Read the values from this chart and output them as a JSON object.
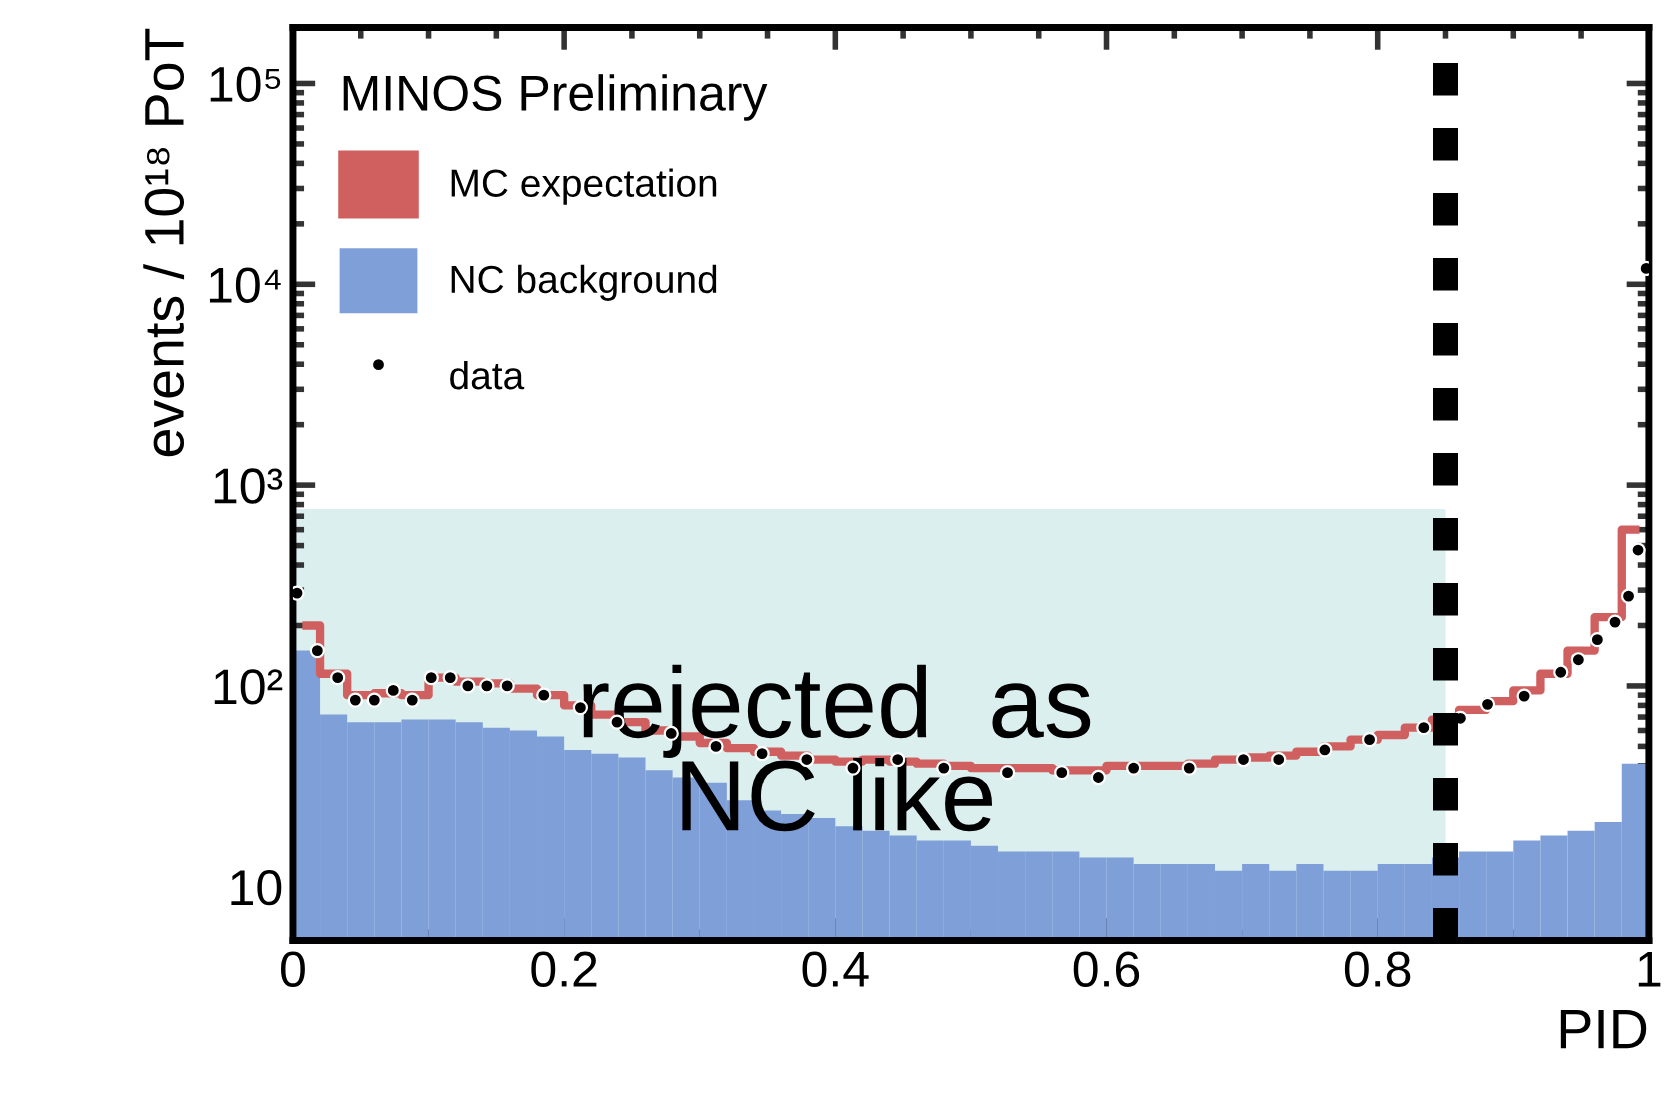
{
  "chart_data": {
    "type": "histogram",
    "xlabel": "PID",
    "ylabel": "events / 10¹⁸ PoT",
    "legend_title": "MINOS Preliminary",
    "bins": [
      0,
      0.02,
      0.04,
      0.06,
      0.08,
      0.1,
      0.12,
      0.14,
      0.16,
      0.18,
      0.2,
      0.22,
      0.24,
      0.26,
      0.28,
      0.3,
      0.32,
      0.34,
      0.36,
      0.38,
      0.4,
      0.42,
      0.44,
      0.46,
      0.48,
      0.5,
      0.52,
      0.54,
      0.56,
      0.58,
      0.6,
      0.62,
      0.64,
      0.66,
      0.68,
      0.7,
      0.72,
      0.74,
      0.76,
      0.78,
      0.8,
      0.82,
      0.84,
      0.86,
      0.88,
      0.9,
      0.92,
      0.94,
      0.96,
      0.98,
      1
    ],
    "series": [
      {
        "type": "area",
        "color": "#dcefef",
        "x": [
          0,
          0.85
        ],
        "values": [
          760,
          760
        ]
      },
      {
        "type": "step",
        "name": "MC expectation",
        "color": "#d06060",
        "x": [
          0.01,
          0.03,
          0.05,
          0.07,
          0.09,
          0.11,
          0.13,
          0.15,
          0.17,
          0.19,
          0.21,
          0.23,
          0.25,
          0.27,
          0.29,
          0.31,
          0.33,
          0.35,
          0.37,
          0.39,
          0.41,
          0.43,
          0.45,
          0.47,
          0.49,
          0.51,
          0.53,
          0.55,
          0.57,
          0.59,
          0.61,
          0.63,
          0.65,
          0.67,
          0.69,
          0.71,
          0.73,
          0.75,
          0.77,
          0.79,
          0.81,
          0.83,
          0.85,
          0.87,
          0.89,
          0.91,
          0.93,
          0.95,
          0.97,
          0.99
        ],
        "values": [
          200,
          115,
          90,
          92,
          90,
          110,
          105,
          103,
          97,
          90,
          80,
          72,
          66,
          60,
          56,
          52,
          49,
          47,
          45,
          43,
          42,
          43,
          42,
          41,
          40,
          39,
          39,
          39,
          38,
          38,
          40,
          40,
          40,
          41,
          43,
          44,
          45,
          47,
          50,
          54,
          57,
          62,
          68,
          76,
          84,
          95,
          115,
          150,
          220,
          600
        ]
      },
      {
        "name": "NC background",
        "color": "#7f9fd8",
        "values": [
          150,
          72,
          66,
          66,
          68,
          68,
          66,
          62,
          60,
          56,
          48,
          46,
          44,
          38,
          35,
          33,
          27,
          24,
          23,
          22,
          20,
          19,
          18,
          17,
          17,
          16,
          15,
          15,
          15,
          14,
          14,
          13,
          13,
          13,
          12,
          13,
          12,
          13,
          12,
          12,
          13,
          13,
          14,
          15,
          15,
          17,
          18,
          19,
          21,
          41
        ]
      },
      {
        "type": "scatter",
        "name": "data",
        "color": "#000000",
        "marker": "circle",
        "x": [
          0.003,
          0.018,
          0.033,
          0.046,
          0.06,
          0.074,
          0.088,
          0.102,
          0.116,
          0.129,
          0.143,
          0.158,
          0.185,
          0.212,
          0.239,
          0.279,
          0.312,
          0.346,
          0.379,
          0.413,
          0.446,
          0.48,
          0.527,
          0.567,
          0.594,
          0.62,
          0.661,
          0.701,
          0.727,
          0.761,
          0.794,
          0.834,
          0.861,
          0.881,
          0.908,
          0.935,
          0.948,
          0.962,
          0.975,
          0.985,
          0.992,
          0.998
        ],
        "values": [
          290,
          150,
          110,
          85,
          85,
          95,
          85,
          110,
          110,
          100,
          100,
          100,
          90,
          78,
          66,
          58,
          50,
          46,
          43,
          39,
          43,
          39,
          37,
          37,
          35,
          39,
          39,
          43,
          43,
          48,
          54,
          62,
          69,
          81,
          89,
          117,
          135,
          170,
          208,
          280,
          475,
          12000
        ]
      }
    ],
    "ref_lines": [
      {
        "axis": "x",
        "value": 0.85,
        "color": "#000000",
        "line_style": "dashed"
      }
    ],
    "annotations": [
      "rejected  as\nNC like"
    ],
    "log": "y",
    "xlim": [
      0,
      1
    ],
    "ylim": [
      5.4,
      190000
    ],
    "xticks": [
      0,
      0.2,
      0.4,
      0.6,
      0.8,
      1
    ],
    "yticks": [
      {
        "value": 10,
        "label": "10"
      },
      {
        "value": 100,
        "label": "10²"
      },
      {
        "value": 1000,
        "label": "10³"
      },
      {
        "value": 10000,
        "label": "10⁴"
      },
      {
        "value": 100000,
        "label": "10⁵"
      }
    ],
    "legend": "top left",
    "grid": false
  }
}
